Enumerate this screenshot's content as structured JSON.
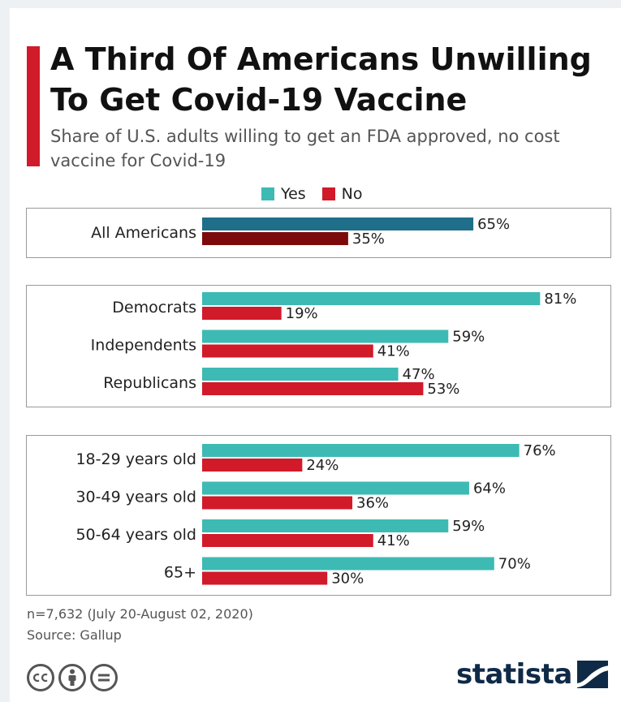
{
  "header": {
    "title": "A Third Of Americans Unwilling To Get Covid-19 Vaccine",
    "subtitle": "Share of U.S. adults willing to get an FDA approved, no cost vaccine for Covid-19"
  },
  "legend": [
    {
      "label": "Yes",
      "color": "#3dbab3"
    },
    {
      "label": "No",
      "color": "#d11a2a"
    }
  ],
  "chart_data": {
    "type": "bar",
    "orientation": "horizontal",
    "title": "A Third Of Americans Unwilling To Get Covid-19 Vaccine",
    "subtitle": "Share of U.S. adults willing to get an FDA approved, no cost vaccine for Covid-19",
    "value_suffix": "%",
    "xlim": [
      0,
      100
    ],
    "grid": false,
    "legend_placement": "top-center",
    "series": [
      {
        "name": "Yes",
        "color": "#3dbab3"
      },
      {
        "name": "No",
        "color": "#d11a2a"
      }
    ],
    "groups": [
      {
        "categories": [
          "All Americans"
        ],
        "yes": [
          65
        ],
        "no": [
          35
        ],
        "highlight": true,
        "yes_color": "#1f6e8a",
        "no_color": "#7d0a0a"
      },
      {
        "categories": [
          "Democrats",
          "Independents",
          "Republicans"
        ],
        "yes": [
          81,
          59,
          47
        ],
        "no": [
          19,
          41,
          53
        ]
      },
      {
        "categories": [
          "18-29 years old",
          "30-49 years old",
          "50-64 years old",
          "65+"
        ],
        "yes": [
          76,
          64,
          59,
          70
        ],
        "no": [
          24,
          36,
          41,
          30
        ]
      }
    ]
  },
  "footer": {
    "note": "n=7,632 (July 20-August 02, 2020)",
    "source": "Source: Gallup",
    "license_icons": [
      "cc-icon",
      "by-icon",
      "nd-icon"
    ],
    "brand": "statista",
    "brand_color": "#0e2a47"
  }
}
